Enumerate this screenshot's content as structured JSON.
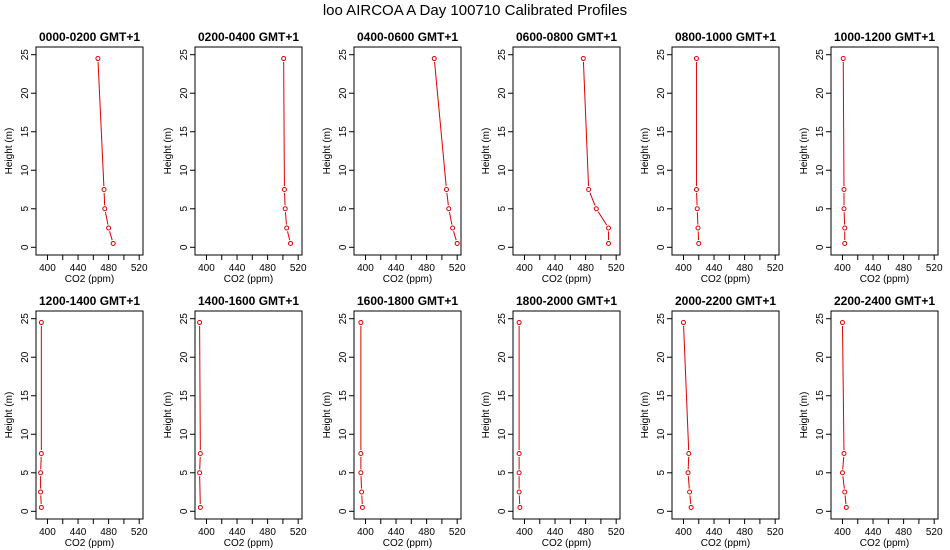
{
  "title": "loo AIRCOA A  Day 100710  Calibrated Profiles",
  "colors": {
    "line": "#dd0000",
    "axis": "#000000"
  },
  "chart_data": [
    {
      "type": "line",
      "title": "0000-0200 GMT+1",
      "xlabel": "CO2 (ppm)",
      "ylabel": "Height (m)",
      "xlim": [
        385,
        525
      ],
      "ylim": [
        -1,
        26
      ],
      "xticks": [
        400,
        440,
        480,
        520
      ],
      "yticks": [
        0,
        5,
        10,
        15,
        20,
        25
      ],
      "points": [
        {
          "x": 486,
          "y": 0.5
        },
        {
          "x": 480,
          "y": 2.5
        },
        {
          "x": 475,
          "y": 5
        },
        {
          "x": 474,
          "y": 7.5
        },
        {
          "x": 466,
          "y": 24.5
        }
      ]
    },
    {
      "type": "line",
      "title": "0200-0400 GMT+1",
      "xlabel": "CO2 (ppm)",
      "ylabel": "Height (m)",
      "xlim": [
        385,
        525
      ],
      "ylim": [
        -1,
        26
      ],
      "xticks": [
        400,
        440,
        480,
        520
      ],
      "yticks": [
        0,
        5,
        10,
        15,
        20,
        25
      ],
      "points": [
        {
          "x": 510,
          "y": 0.5
        },
        {
          "x": 505,
          "y": 2.5
        },
        {
          "x": 503,
          "y": 5
        },
        {
          "x": 502,
          "y": 7.5
        },
        {
          "x": 501,
          "y": 24.5
        }
      ]
    },
    {
      "type": "line",
      "title": "0400-0600 GMT+1",
      "xlabel": "CO2 (ppm)",
      "ylabel": "Height (m)",
      "xlim": [
        385,
        525
      ],
      "ylim": [
        -1,
        26
      ],
      "xticks": [
        400,
        440,
        480,
        520
      ],
      "yticks": [
        0,
        5,
        10,
        15,
        20,
        25
      ],
      "points": [
        {
          "x": 520,
          "y": 0.5
        },
        {
          "x": 514,
          "y": 2.5
        },
        {
          "x": 509,
          "y": 5
        },
        {
          "x": 506,
          "y": 7.5
        },
        {
          "x": 490,
          "y": 24.5
        }
      ]
    },
    {
      "type": "line",
      "title": "0600-0800 GMT+1",
      "xlabel": "CO2 (ppm)",
      "ylabel": "Height (m)",
      "xlim": [
        385,
        525
      ],
      "ylim": [
        -1,
        26
      ],
      "xticks": [
        400,
        440,
        480,
        520
      ],
      "yticks": [
        0,
        5,
        10,
        15,
        20,
        25
      ],
      "points": [
        {
          "x": 510,
          "y": 0.5
        },
        {
          "x": 510,
          "y": 2.5
        },
        {
          "x": 494,
          "y": 5
        },
        {
          "x": 484,
          "y": 7.5
        },
        {
          "x": 477,
          "y": 24.5
        }
      ]
    },
    {
      "type": "line",
      "title": "0800-1000 GMT+1",
      "xlabel": "CO2 (ppm)",
      "ylabel": "Height (m)",
      "xlim": [
        385,
        525
      ],
      "ylim": [
        -1,
        26
      ],
      "xticks": [
        400,
        440,
        480,
        520
      ],
      "yticks": [
        0,
        5,
        10,
        15,
        20,
        25
      ],
      "points": [
        {
          "x": 420,
          "y": 0.5
        },
        {
          "x": 419,
          "y": 2.5
        },
        {
          "x": 418,
          "y": 5
        },
        {
          "x": 417,
          "y": 7.5
        },
        {
          "x": 417,
          "y": 24.5
        }
      ]
    },
    {
      "type": "line",
      "title": "1000-1200 GMT+1",
      "xlabel": "CO2 (ppm)",
      "ylabel": "Height (m)",
      "xlim": [
        385,
        525
      ],
      "ylim": [
        -1,
        26
      ],
      "xticks": [
        400,
        440,
        480,
        520
      ],
      "yticks": [
        0,
        5,
        10,
        15,
        20,
        25
      ],
      "points": [
        {
          "x": 403,
          "y": 0.5
        },
        {
          "x": 403,
          "y": 2.5
        },
        {
          "x": 402,
          "y": 5
        },
        {
          "x": 402,
          "y": 7.5
        },
        {
          "x": 401,
          "y": 24.5
        }
      ]
    },
    {
      "type": "line",
      "title": "1200-1400 GMT+1",
      "xlabel": "CO2 (ppm)",
      "ylabel": "Height (m)",
      "xlim": [
        385,
        525
      ],
      "ylim": [
        -1,
        26
      ],
      "xticks": [
        400,
        440,
        480,
        520
      ],
      "yticks": [
        0,
        5,
        10,
        15,
        20,
        25
      ],
      "points": [
        {
          "x": 392,
          "y": 0.5
        },
        {
          "x": 391,
          "y": 2.5
        },
        {
          "x": 391,
          "y": 5
        },
        {
          "x": 392,
          "y": 7.5
        },
        {
          "x": 392,
          "y": 24.5
        }
      ]
    },
    {
      "type": "line",
      "title": "1400-1600 GMT+1",
      "xlabel": "CO2 (ppm)",
      "ylabel": "Height (m)",
      "xlim": [
        385,
        525
      ],
      "ylim": [
        -1,
        26
      ],
      "xticks": [
        400,
        440,
        480,
        520
      ],
      "yticks": [
        0,
        5,
        10,
        15,
        20,
        25
      ],
      "points": [
        {
          "x": 392,
          "y": 0.5
        },
        {
          "x": 391,
          "y": 5
        },
        {
          "x": 392,
          "y": 7.5
        },
        {
          "x": 391,
          "y": 24.5
        }
      ]
    },
    {
      "type": "line",
      "title": "1600-1800 GMT+1",
      "xlabel": "CO2 (ppm)",
      "ylabel": "Height (m)",
      "xlim": [
        385,
        525
      ],
      "ylim": [
        -1,
        26
      ],
      "xticks": [
        400,
        440,
        480,
        520
      ],
      "yticks": [
        0,
        5,
        10,
        15,
        20,
        25
      ],
      "points": [
        {
          "x": 396,
          "y": 0.5
        },
        {
          "x": 395,
          "y": 2.5
        },
        {
          "x": 394,
          "y": 5
        },
        {
          "x": 394,
          "y": 7.5
        },
        {
          "x": 394,
          "y": 24.5
        }
      ]
    },
    {
      "type": "line",
      "title": "1800-2000 GMT+1",
      "xlabel": "CO2 (ppm)",
      "ylabel": "Height (m)",
      "xlim": [
        385,
        525
      ],
      "ylim": [
        -1,
        26
      ],
      "xticks": [
        400,
        440,
        480,
        520
      ],
      "yticks": [
        0,
        5,
        10,
        15,
        20,
        25
      ],
      "points": [
        {
          "x": 394,
          "y": 0.5
        },
        {
          "x": 393,
          "y": 2.5
        },
        {
          "x": 393,
          "y": 5
        },
        {
          "x": 393,
          "y": 7.5
        },
        {
          "x": 393,
          "y": 24.5
        }
      ]
    },
    {
      "type": "line",
      "title": "2000-2200 GMT+1",
      "xlabel": "CO2 (ppm)",
      "ylabel": "Height (m)",
      "xlim": [
        385,
        525
      ],
      "ylim": [
        -1,
        26
      ],
      "xticks": [
        400,
        440,
        480,
        520
      ],
      "yticks": [
        0,
        5,
        10,
        15,
        20,
        25
      ],
      "points": [
        {
          "x": 410,
          "y": 0.5
        },
        {
          "x": 408,
          "y": 2.5
        },
        {
          "x": 406,
          "y": 5
        },
        {
          "x": 407,
          "y": 7.5
        },
        {
          "x": 400,
          "y": 24.5
        }
      ]
    },
    {
      "type": "line",
      "title": "2200-2400 GMT+1",
      "xlabel": "CO2 (ppm)",
      "ylabel": "Height (m)",
      "xlim": [
        385,
        525
      ],
      "ylim": [
        -1,
        26
      ],
      "xticks": [
        400,
        440,
        480,
        520
      ],
      "yticks": [
        0,
        5,
        10,
        15,
        20,
        25
      ],
      "points": [
        {
          "x": 405,
          "y": 0.5
        },
        {
          "x": 403,
          "y": 2.5
        },
        {
          "x": 400,
          "y": 5
        },
        {
          "x": 402,
          "y": 7.5
        },
        {
          "x": 400,
          "y": 24.5
        }
      ]
    }
  ]
}
